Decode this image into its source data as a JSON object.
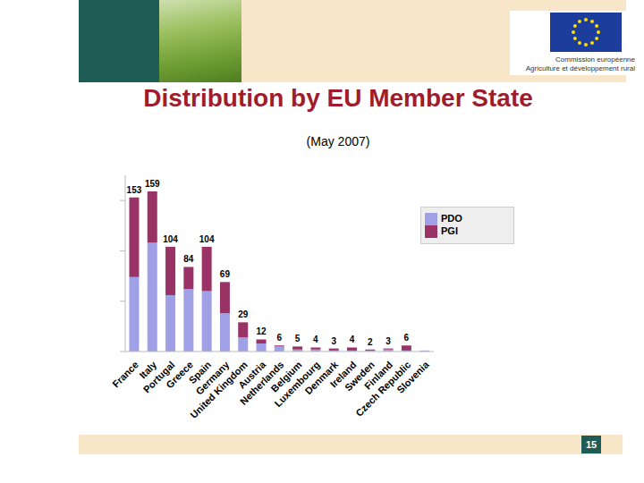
{
  "header_text": [
    "Commission européenne",
    "Agriculture et développement rural"
  ],
  "page_number": "15",
  "chart_data": {
    "type": "bar",
    "title": "Distribution by EU Member State",
    "subtitle": "(May 2007)",
    "categories": [
      "France",
      "Italy",
      "Portugal",
      "Greece",
      "Spain",
      "Germany",
      "United Kingdom",
      "Austria",
      "Netherlands",
      "Belgium",
      "Luxembourg",
      "Denmark",
      "Ireland",
      "Sweden",
      "Finland",
      "Czech Republic",
      "Slovenia"
    ],
    "series": [
      {
        "name": "PDO",
        "color": "#a0a0e6",
        "values": [
          74,
          108,
          56,
          62,
          60,
          38,
          14,
          8,
          5,
          2,
          2,
          1,
          1,
          1,
          2,
          1,
          1
        ]
      },
      {
        "name": "PGI",
        "color": "#993366",
        "values": [
          79,
          51,
          48,
          22,
          44,
          31,
          15,
          4,
          1,
          3,
          2,
          2,
          3,
          1,
          1,
          5,
          0
        ]
      }
    ],
    "totals": [
      153,
      159,
      104,
      84,
      104,
      69,
      29,
      12,
      6,
      5,
      4,
      3,
      4,
      2,
      3,
      6,
      1
    ],
    "stacked": true,
    "ylim": [
      0,
      175
    ],
    "yticks": [
      0,
      50,
      100,
      150
    ],
    "grid": false,
    "legend": "upper right",
    "tick_labels": "x"
  }
}
